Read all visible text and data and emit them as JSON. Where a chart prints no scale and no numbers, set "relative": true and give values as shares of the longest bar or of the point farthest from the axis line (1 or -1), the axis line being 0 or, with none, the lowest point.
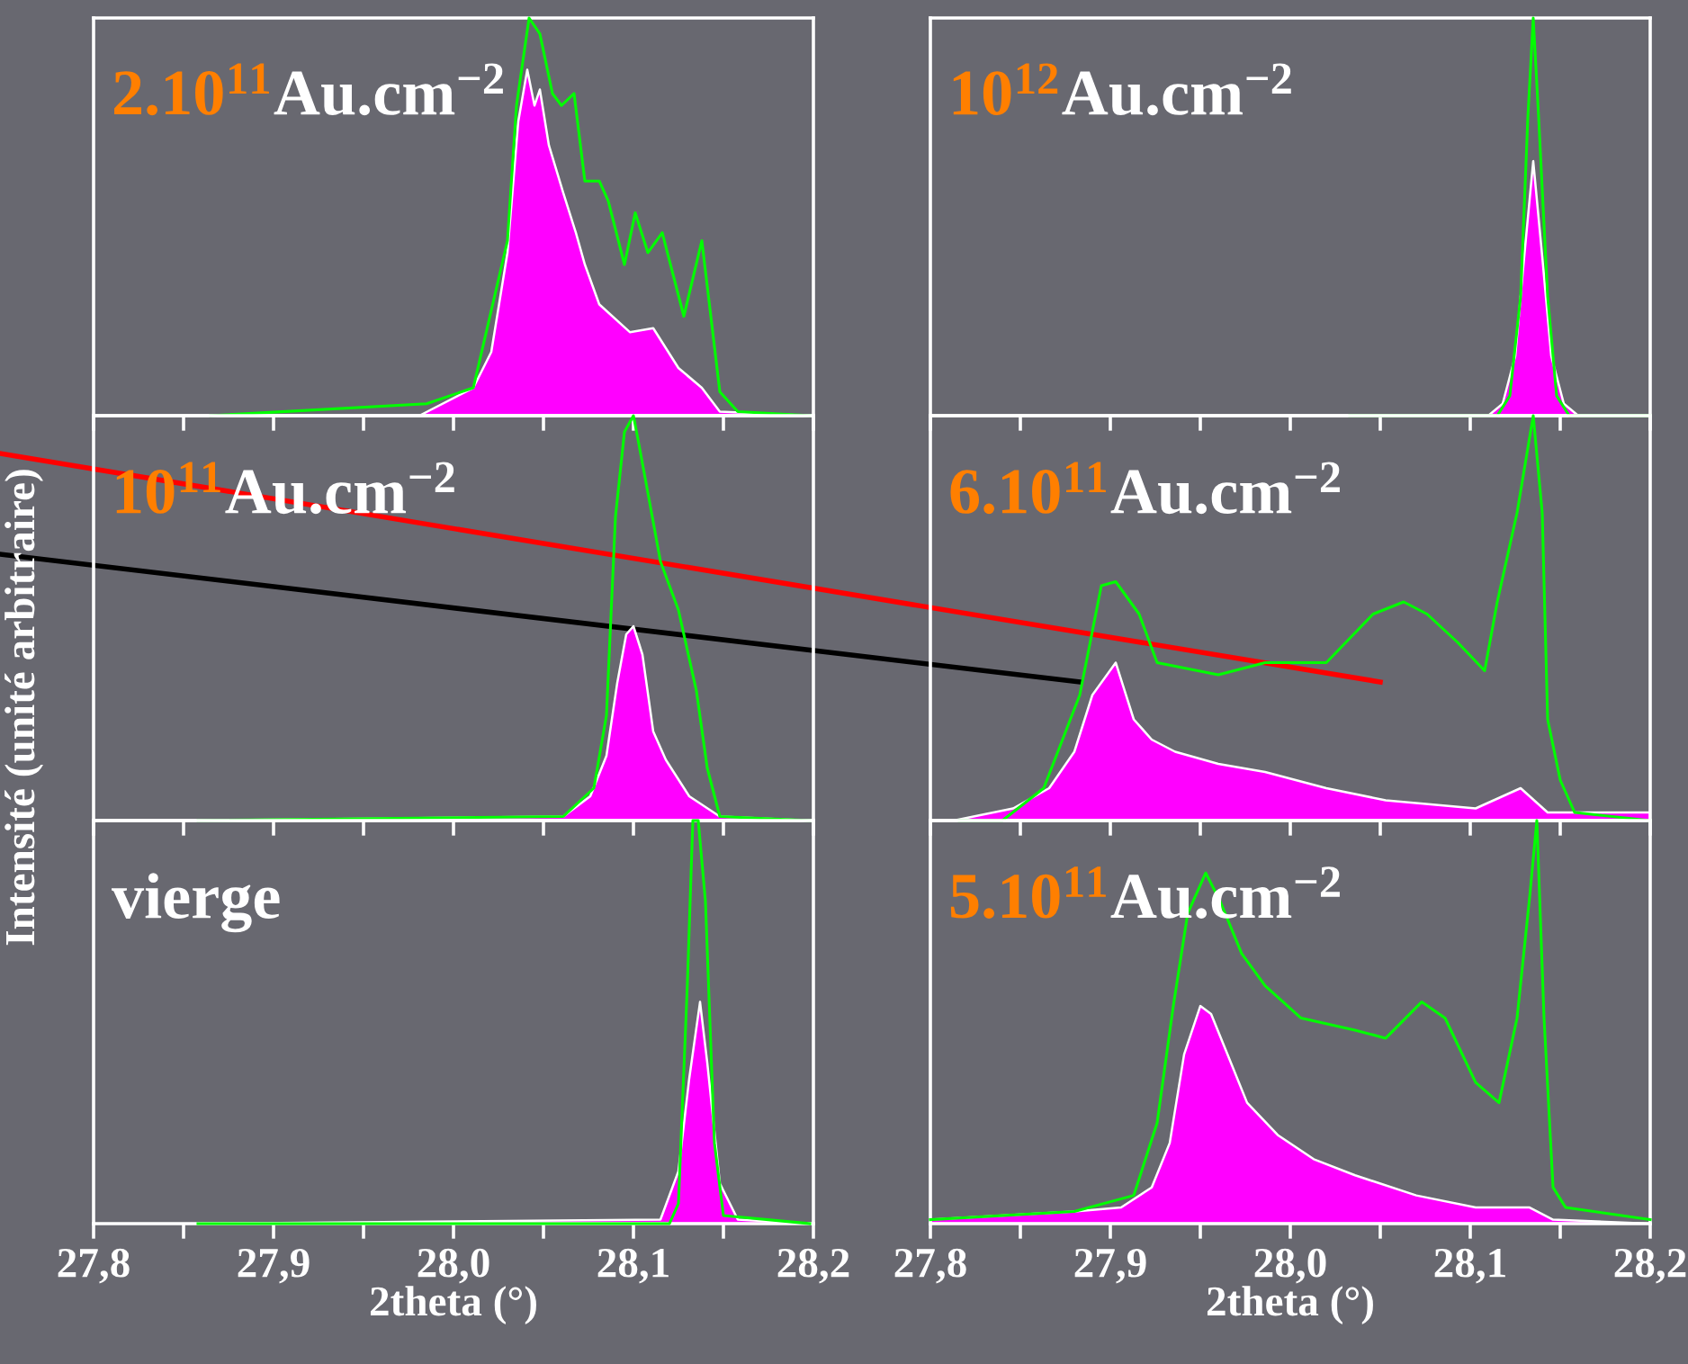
{
  "chart_data": [
    {
      "type": "area",
      "title": "2.10$^{11}$Au.cm$^{−2}$",
      "relative": true,
      "tick_labels": false,
      "xlim": [
        27.8,
        28.2
      ],
      "xticks": [
        {
          "value": 27.8,
          "label": null
        },
        {
          "value": 27.85,
          "label": null
        },
        {
          "value": 27.9,
          "label": null
        },
        {
          "value": 27.95,
          "label": null
        },
        {
          "value": 28.0,
          "label": null
        },
        {
          "value": 28.05,
          "label": null
        },
        {
          "value": 28.1,
          "label": null
        },
        {
          "value": 28.15,
          "label": null
        },
        {
          "value": 28.2,
          "label": null
        }
      ],
      "series": [
        {
          "color": "#ff00ff",
          "x": [
            27.865,
            27.981,
            28.011,
            28.021,
            28.03,
            28.036,
            28.041,
            28.045,
            28.048,
            28.053,
            28.061,
            28.068,
            28.073,
            28.081,
            28.098,
            28.111,
            28.125,
            28.138,
            28.148,
            28.198
          ],
          "values": [
            0,
            0,
            0.07,
            0.16,
            0.41,
            0.74,
            0.87,
            0.78,
            0.82,
            0.68,
            0.56,
            0.46,
            0.38,
            0.28,
            0.21,
            0.22,
            0.12,
            0.07,
            0.01,
            0
          ]
        },
        {
          "type": "line",
          "color": "#00ff00",
          "x": [
            27.865,
            27.985,
            28.011,
            28.03,
            28.035,
            28.042,
            28.048,
            28.055,
            28.06,
            28.067,
            28.073,
            28.081,
            28.086,
            28.095,
            28.101,
            28.108,
            28.116,
            28.128,
            28.138,
            28.148,
            28.158,
            28.198
          ],
          "values": [
            0,
            0.03,
            0.07,
            0.44,
            0.78,
            1.0,
            0.96,
            0.81,
            0.78,
            0.81,
            0.59,
            0.59,
            0.54,
            0.38,
            0.51,
            0.41,
            0.46,
            0.25,
            0.44,
            0.06,
            0.01,
            0
          ]
        }
      ]
    },
    {
      "type": "area",
      "title": "10$^{12}$Au.cm$^{−2}$",
      "relative": true,
      "tick_labels": false,
      "xlim": [
        27.8,
        28.2
      ],
      "xticks": [
        {
          "value": 27.8,
          "label": null
        },
        {
          "value": 27.85,
          "label": null
        },
        {
          "value": 27.9,
          "label": null
        },
        {
          "value": 27.95,
          "label": null
        },
        {
          "value": 28.0,
          "label": null
        },
        {
          "value": 28.05,
          "label": null
        },
        {
          "value": 28.1,
          "label": null
        },
        {
          "value": 28.15,
          "label": null
        },
        {
          "value": 28.2,
          "label": null
        }
      ],
      "series": [
        {
          "color": "#ff00ff",
          "x": [
            28.033,
            28.11,
            28.118,
            28.125,
            28.13,
            28.135,
            28.14,
            28.145,
            28.152,
            28.16,
            28.2
          ],
          "values": [
            0,
            0,
            0.03,
            0.15,
            0.4,
            0.64,
            0.4,
            0.15,
            0.03,
            0,
            0
          ]
        },
        {
          "type": "line",
          "color": "#00ff00",
          "x": [
            28.033,
            28.115,
            28.122,
            28.128,
            28.132,
            28.135,
            28.138,
            28.143,
            28.148,
            28.155,
            28.2
          ],
          "values": [
            0,
            0,
            0.05,
            0.3,
            0.75,
            1.0,
            0.75,
            0.3,
            0.05,
            0,
            0
          ]
        }
      ]
    },
    {
      "type": "area",
      "title": "10$^{11}$Au.cm$^{−2}$",
      "ylabel": "Intensité (unité arbitraire)",
      "relative": true,
      "tick_labels": false,
      "xlim": [
        27.8,
        28.2
      ],
      "xticks": [
        {
          "value": 27.8,
          "label": null
        },
        {
          "value": 27.85,
          "label": null
        },
        {
          "value": 27.9,
          "label": null
        },
        {
          "value": 27.95,
          "label": null
        },
        {
          "value": 28.0,
          "label": null
        },
        {
          "value": 28.05,
          "label": null
        },
        {
          "value": 28.1,
          "label": null
        },
        {
          "value": 28.15,
          "label": null
        },
        {
          "value": 28.2,
          "label": null
        }
      ],
      "series": [
        {
          "color": "#ff00ff",
          "x": [
            27.858,
            28.061,
            28.076,
            28.085,
            28.091,
            28.096,
            28.1,
            28.105,
            28.111,
            28.118,
            28.131,
            28.148,
            28.198
          ],
          "values": [
            0,
            0.01,
            0.06,
            0.16,
            0.34,
            0.46,
            0.48,
            0.41,
            0.22,
            0.15,
            0.06,
            0.01,
            0
          ]
        },
        {
          "type": "line",
          "color": "#00ff00",
          "x": [
            27.858,
            28.061,
            28.078,
            28.085,
            28.09,
            28.095,
            28.1,
            28.103,
            28.108,
            28.115,
            28.125,
            28.135,
            28.141,
            28.148,
            28.198
          ],
          "values": [
            0,
            0.01,
            0.08,
            0.26,
            0.75,
            0.96,
            1.0,
            0.93,
            0.81,
            0.64,
            0.52,
            0.32,
            0.13,
            0.01,
            0
          ]
        }
      ]
    },
    {
      "type": "area",
      "title": "6.10$^{11}$Au.cm$^{−2}$",
      "relative": true,
      "tick_labels": false,
      "xlim": [
        27.8,
        28.2
      ],
      "xticks": [
        {
          "value": 27.8,
          "label": null
        },
        {
          "value": 27.85,
          "label": null
        },
        {
          "value": 27.9,
          "label": null
        },
        {
          "value": 27.95,
          "label": null
        },
        {
          "value": 28.0,
          "label": null
        },
        {
          "value": 28.05,
          "label": null
        },
        {
          "value": 28.1,
          "label": null
        },
        {
          "value": 28.15,
          "label": null
        },
        {
          "value": 28.2,
          "label": null
        }
      ],
      "series": [
        {
          "color": "#ff00ff",
          "x": [
            27.813,
            27.846,
            27.866,
            27.88,
            27.89,
            27.903,
            27.913,
            27.923,
            27.936,
            27.96,
            27.986,
            28.02,
            28.053,
            28.103,
            28.128,
            28.143,
            28.2
          ],
          "values": [
            0,
            0.03,
            0.08,
            0.17,
            0.31,
            0.39,
            0.25,
            0.2,
            0.17,
            0.14,
            0.12,
            0.08,
            0.05,
            0.03,
            0.08,
            0.02,
            0.02
          ]
        },
        {
          "type": "line",
          "color": "#00ff00",
          "x": [
            27.816,
            27.84,
            27.863,
            27.883,
            27.895,
            27.903,
            27.916,
            27.926,
            27.96,
            27.986,
            28.02,
            28.046,
            28.063,
            28.076,
            28.093,
            28.108,
            28.115,
            28.126,
            28.135,
            28.14,
            28.143,
            28.15,
            28.158,
            28.2
          ],
          "values": [
            0,
            0,
            0.08,
            0.31,
            0.58,
            0.59,
            0.51,
            0.39,
            0.36,
            0.39,
            0.39,
            0.51,
            0.54,
            0.51,
            0.44,
            0.37,
            0.54,
            0.76,
            1.0,
            0.76,
            0.25,
            0.1,
            0.02,
            0
          ]
        }
      ]
    },
    {
      "type": "area",
      "title": "vierge",
      "xlabel": "2theta (°)",
      "relative": true,
      "tick_labels": "x",
      "xlim": [
        27.8,
        28.2
      ],
      "xticks": [
        {
          "value": 27.8,
          "label": "27,8"
        },
        {
          "value": 27.85,
          "label": null
        },
        {
          "value": 27.9,
          "label": "27,9"
        },
        {
          "value": 27.95,
          "label": null
        },
        {
          "value": 28.0,
          "label": "28,0"
        },
        {
          "value": 28.05,
          "label": null
        },
        {
          "value": 28.1,
          "label": "28,1"
        },
        {
          "value": 28.15,
          "label": null
        },
        {
          "value": 28.2,
          "label": "28,2"
        }
      ],
      "series": [
        {
          "color": "#ff00ff",
          "x": [
            27.858,
            28.115,
            28.125,
            28.131,
            28.137,
            28.141,
            28.148,
            28.158,
            28.198
          ],
          "values": [
            0,
            0.01,
            0.13,
            0.36,
            0.55,
            0.4,
            0.1,
            0.01,
            0
          ]
        },
        {
          "type": "line",
          "color": "#00ff00",
          "x": [
            27.858,
            28.12,
            28.125,
            28.13,
            28.133,
            28.136,
            28.14,
            28.145,
            28.15,
            28.198
          ],
          "values": [
            0,
            0,
            0.05,
            0.6,
            1.0,
            1.0,
            0.8,
            0.2,
            0.02,
            0
          ]
        }
      ]
    },
    {
      "type": "area",
      "title": "5.10$^{11}$Au.cm$^{−2}$",
      "xlabel": "2theta (°)",
      "relative": true,
      "tick_labels": "x",
      "xlim": [
        27.8,
        28.2
      ],
      "xticks": [
        {
          "value": 27.8,
          "label": "27,8"
        },
        {
          "value": 27.85,
          "label": null
        },
        {
          "value": 27.9,
          "label": "27,9"
        },
        {
          "value": 27.95,
          "label": null
        },
        {
          "value": 28.0,
          "label": "28,0"
        },
        {
          "value": 28.05,
          "label": null
        },
        {
          "value": 28.1,
          "label": "28,1"
        },
        {
          "value": 28.15,
          "label": null
        },
        {
          "value": 28.2,
          "label": "28,2"
        }
      ],
      "series": [
        {
          "color": "#ff00ff",
          "x": [
            27.8,
            27.88,
            27.906,
            27.923,
            27.933,
            27.941,
            27.95,
            27.956,
            27.966,
            27.976,
            27.993,
            28.013,
            28.036,
            28.07,
            28.103,
            28.133,
            28.146,
            28.2
          ],
          "values": [
            0.01,
            0.03,
            0.04,
            0.09,
            0.2,
            0.42,
            0.54,
            0.52,
            0.41,
            0.3,
            0.22,
            0.16,
            0.12,
            0.07,
            0.04,
            0.04,
            0.01,
            0
          ]
        },
        {
          "type": "line",
          "color": "#00ff00",
          "x": [
            27.8,
            27.88,
            27.913,
            27.926,
            27.935,
            27.943,
            27.953,
            27.961,
            27.973,
            27.986,
            28.006,
            28.036,
            28.053,
            28.073,
            28.086,
            28.103,
            28.116,
            28.126,
            28.133,
            28.137,
            28.141,
            28.146,
            28.153,
            28.2
          ],
          "values": [
            0.01,
            0.03,
            0.07,
            0.25,
            0.54,
            0.77,
            0.87,
            0.8,
            0.67,
            0.59,
            0.51,
            0.48,
            0.46,
            0.55,
            0.51,
            0.35,
            0.3,
            0.51,
            0.81,
            1.0,
            0.51,
            0.09,
            0.04,
            0.01
          ]
        }
      ]
    }
  ]
}
